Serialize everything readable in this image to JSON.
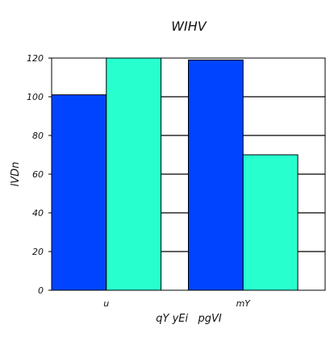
{
  "chart_data": {
    "type": "bar",
    "title": "WIHV",
    "xlabel": "qY yEi   pgVI",
    "ylabel": "lVDn",
    "categories": [
      "u",
      "mY"
    ],
    "series": [
      {
        "values": [
          101,
          119
        ],
        "color": "#0044ff"
      },
      {
        "values": [
          120,
          70
        ],
        "color": "#28ffcf"
      }
    ],
    "ylim": [
      0,
      120
    ],
    "yticks": [
      0,
      20,
      40,
      60,
      80,
      100,
      120
    ],
    "grid": {
      "y": true,
      "x": false
    },
    "legend": "none"
  }
}
